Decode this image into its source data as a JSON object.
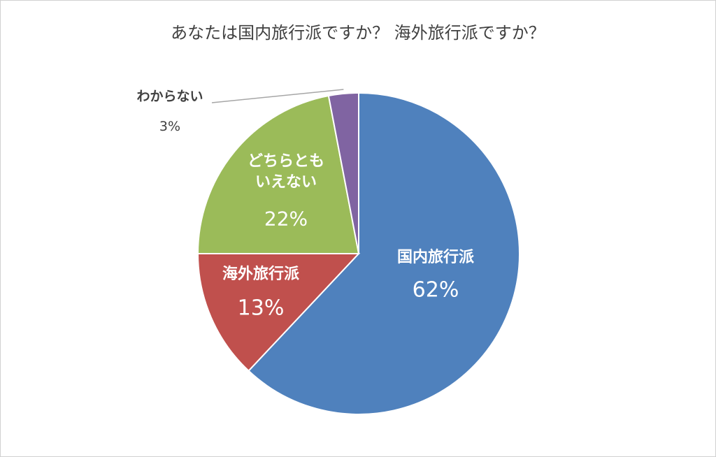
{
  "chart_data": {
    "type": "pie",
    "title": "あなたは国内旅行派ですか？ 海外旅行派ですか？",
    "categories": [
      "国内旅行派",
      "海外旅行派",
      "どちらとも\nいえない",
      "わからない"
    ],
    "values": [
      62,
      13,
      22,
      3
    ],
    "value_labels": [
      "62%",
      "13%",
      "22%",
      "3%"
    ],
    "colors": [
      "#4f81bd",
      "#c0504d",
      "#9bbb59",
      "#8064a2"
    ]
  }
}
